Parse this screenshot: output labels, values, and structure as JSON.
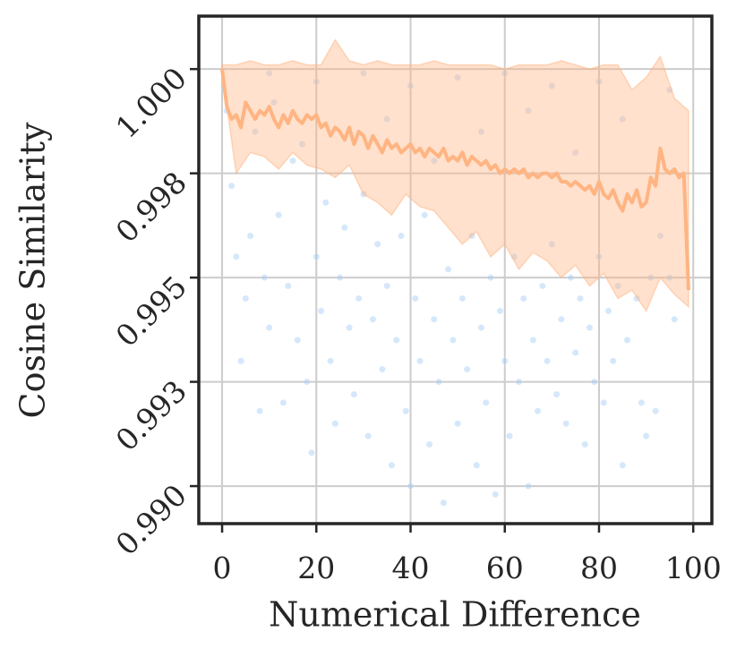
{
  "chart_data": {
    "type": "line",
    "xlabel": "Numerical Difference",
    "ylabel": "Cosine Similarity",
    "xlim": [
      -4.95,
      103.95
    ],
    "xticks": [
      0,
      20,
      40,
      60,
      80,
      100
    ],
    "ylim": [
      0.9891,
      1.00127
    ],
    "yticks": [
      {
        "value": 0.99,
        "label": "0.990"
      },
      {
        "value": 0.9925,
        "label": "0.993"
      },
      {
        "value": 0.995,
        "label": "0.995"
      },
      {
        "value": 0.9975,
        "label": "0.998"
      },
      {
        "value": 1,
        "label": "1.000"
      }
    ],
    "grid": true,
    "scatter": {
      "color": "#a1c9f4",
      "x": [
        2,
        3,
        4,
        5,
        6,
        8,
        9,
        10,
        12,
        13,
        14,
        15,
        16,
        18,
        19,
        20,
        21,
        22,
        23,
        24,
        25,
        26,
        27,
        28,
        29,
        30,
        31,
        32,
        33,
        34,
        35,
        36,
        37,
        38,
        39,
        40,
        41,
        42,
        43,
        44,
        45,
        46,
        47,
        48,
        49,
        50,
        51,
        52,
        53,
        54,
        55,
        56,
        57,
        58,
        59,
        60,
        61,
        62,
        63,
        64,
        65,
        66,
        67,
        68,
        69,
        70,
        71,
        72,
        73,
        74,
        75,
        76,
        77,
        78,
        79,
        80,
        81,
        82,
        83,
        84,
        85,
        86,
        88,
        89,
        90,
        91,
        92,
        93,
        95,
        96,
        1,
        7,
        11,
        17,
        35,
        45,
        55,
        65,
        75,
        85,
        95,
        50,
        60,
        70,
        80,
        30,
        20,
        10,
        40
      ],
      "values": [
        0.9972,
        0.9955,
        0.993,
        0.9945,
        0.996,
        0.9918,
        0.995,
        0.9938,
        0.9965,
        0.992,
        0.9948,
        0.9978,
        0.9935,
        0.9925,
        0.9908,
        0.9955,
        0.9942,
        0.9968,
        0.993,
        0.9915,
        0.995,
        0.9962,
        0.9938,
        0.9922,
        0.9945,
        0.997,
        0.9912,
        0.994,
        0.9958,
        0.9928,
        0.9948,
        0.9905,
        0.9935,
        0.996,
        0.9918,
        0.99,
        0.9945,
        0.993,
        0.9965,
        0.991,
        0.994,
        0.9925,
        0.9896,
        0.9952,
        0.9935,
        0.9915,
        0.9945,
        0.9928,
        0.996,
        0.9905,
        0.9938,
        0.992,
        0.995,
        0.9898,
        0.9942,
        0.993,
        0.9912,
        0.9955,
        0.9925,
        0.9945,
        0.99,
        0.9935,
        0.9918,
        0.9948,
        0.993,
        0.9958,
        0.9922,
        0.994,
        0.9915,
        0.995,
        0.9932,
        0.9945,
        0.991,
        0.9938,
        0.9925,
        0.9955,
        0.992,
        0.9942,
        0.993,
        0.9948,
        0.9905,
        0.9935,
        0.9945,
        0.992,
        0.9912,
        0.995,
        0.9918,
        0.996,
        0.995,
        0.994,
        0.999,
        0.9985,
        0.9992,
        0.9982,
        0.9988,
        0.9978,
        0.9985,
        0.999,
        0.998,
        0.9988,
        0.9995,
        0.9998,
        0.9999,
        0.9996,
        0.9997,
        0.9999,
        0.9997,
        0.9999,
        0.9996
      ]
    },
    "band": {
      "color": "#ffb482",
      "x": [
        0,
        3,
        6,
        9,
        12,
        15,
        18,
        21,
        24,
        27,
        30,
        33,
        36,
        39,
        42,
        45,
        48,
        51,
        54,
        57,
        60,
        63,
        66,
        69,
        72,
        75,
        78,
        81,
        84,
        87,
        90,
        93,
        96,
        99
      ],
      "upper": [
        1.0001,
        1.0001,
        1.0002,
        1.0001,
        1.0001,
        1.0002,
        1.0001,
        1.0001,
        1.0007,
        1.0002,
        1.0001,
        1.0002,
        1.0001,
        1.0001,
        1.0001,
        1.0002,
        1.0001,
        1.0001,
        1.0001,
        1.0001,
        1.0,
        1.0001,
        1.0001,
        1.0001,
        1.0002,
        1.0001,
        1.0,
        1.0001,
        1.0001,
        0.9995,
        0.9998,
        1.0003,
        0.9993,
        0.999
      ],
      "lower": [
        0.9999,
        0.9975,
        0.998,
        0.9979,
        0.9976,
        0.998,
        0.9977,
        0.9976,
        0.9974,
        0.9977,
        0.997,
        0.9968,
        0.9965,
        0.997,
        0.9967,
        0.9966,
        0.9962,
        0.9958,
        0.9961,
        0.9955,
        0.9958,
        0.9952,
        0.9956,
        0.9954,
        0.995,
        0.9953,
        0.9948,
        0.9951,
        0.9945,
        0.9947,
        0.9942,
        0.995,
        0.9946,
        0.9943
      ]
    },
    "line": {
      "color": "#ffb482",
      "x": [
        0,
        1,
        2,
        3,
        4,
        5,
        6,
        7,
        8,
        9,
        10,
        11,
        12,
        13,
        14,
        15,
        16,
        17,
        18,
        19,
        20,
        21,
        22,
        23,
        24,
        25,
        26,
        27,
        28,
        29,
        30,
        31,
        32,
        33,
        34,
        35,
        36,
        37,
        38,
        39,
        40,
        41,
        42,
        43,
        44,
        45,
        46,
        47,
        48,
        49,
        50,
        51,
        52,
        53,
        54,
        55,
        56,
        57,
        58,
        59,
        60,
        61,
        62,
        63,
        64,
        65,
        66,
        67,
        68,
        69,
        70,
        71,
        72,
        73,
        74,
        75,
        76,
        77,
        78,
        79,
        80,
        81,
        82,
        83,
        84,
        85,
        86,
        87,
        88,
        89,
        90,
        91,
        92,
        93,
        94,
        95,
        96,
        97,
        98,
        99
      ],
      "values": [
        1.0,
        0.9991,
        0.9988,
        0.9989,
        0.9986,
        0.9992,
        0.999,
        0.9988,
        0.999,
        0.9989,
        0.9991,
        0.9988,
        0.9986,
        0.9989,
        0.9987,
        0.999,
        0.9988,
        0.9987,
        0.9989,
        0.9988,
        0.9989,
        0.9986,
        0.9987,
        0.9984,
        0.9986,
        0.9985,
        0.9983,
        0.9986,
        0.9982,
        0.9985,
        0.9984,
        0.9981,
        0.9984,
        0.9982,
        0.998,
        0.9983,
        0.9981,
        0.9982,
        0.998,
        0.9981,
        0.9982,
        0.998,
        0.9981,
        0.9979,
        0.9981,
        0.998,
        0.9979,
        0.9981,
        0.9978,
        0.9979,
        0.9978,
        0.998,
        0.9977,
        0.9979,
        0.9978,
        0.9977,
        0.9978,
        0.9976,
        0.9977,
        0.9975,
        0.9976,
        0.9975,
        0.9976,
        0.9975,
        0.9976,
        0.9974,
        0.9975,
        0.9974,
        0.9975,
        0.9975,
        0.9974,
        0.9975,
        0.9973,
        0.9973,
        0.9972,
        0.9973,
        0.9972,
        0.9971,
        0.9972,
        0.997,
        0.9973,
        0.997,
        0.9969,
        0.9971,
        0.9968,
        0.9966,
        0.997,
        0.9968,
        0.9971,
        0.9967,
        0.9968,
        0.9974,
        0.9972,
        0.9981,
        0.9976,
        0.9975,
        0.9976,
        0.9974,
        0.9975,
        0.9947
      ]
    }
  }
}
